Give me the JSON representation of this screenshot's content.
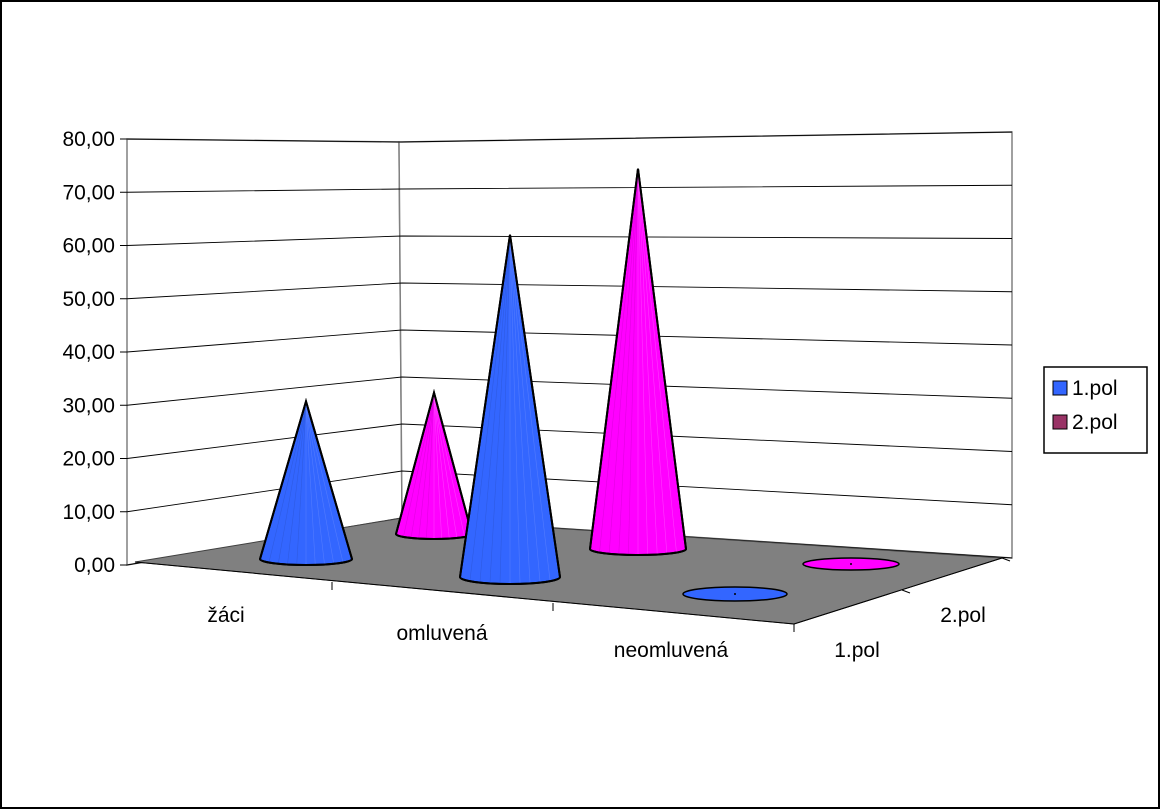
{
  "chart_data": {
    "type": "bar",
    "style": "3d-cone",
    "categories": [
      "žáci",
      "omluvená",
      "neomluvená"
    ],
    "depth_labels": [
      "1.pol",
      "2.pol"
    ],
    "series": [
      {
        "name": "1.pol",
        "values": [
          29,
          63,
          0
        ],
        "color": "#3366ff"
      },
      {
        "name": "2.pol",
        "values": [
          26,
          70,
          0
        ],
        "color": "#ff00ff"
      }
    ],
    "ylim": [
      0,
      80
    ],
    "y_ticks": [
      "0,00",
      "10,00",
      "20,00",
      "30,00",
      "40,00",
      "50,00",
      "60,00",
      "70,00",
      "80,00"
    ],
    "grid": true,
    "legend": "right",
    "floor_color": "#808080"
  }
}
